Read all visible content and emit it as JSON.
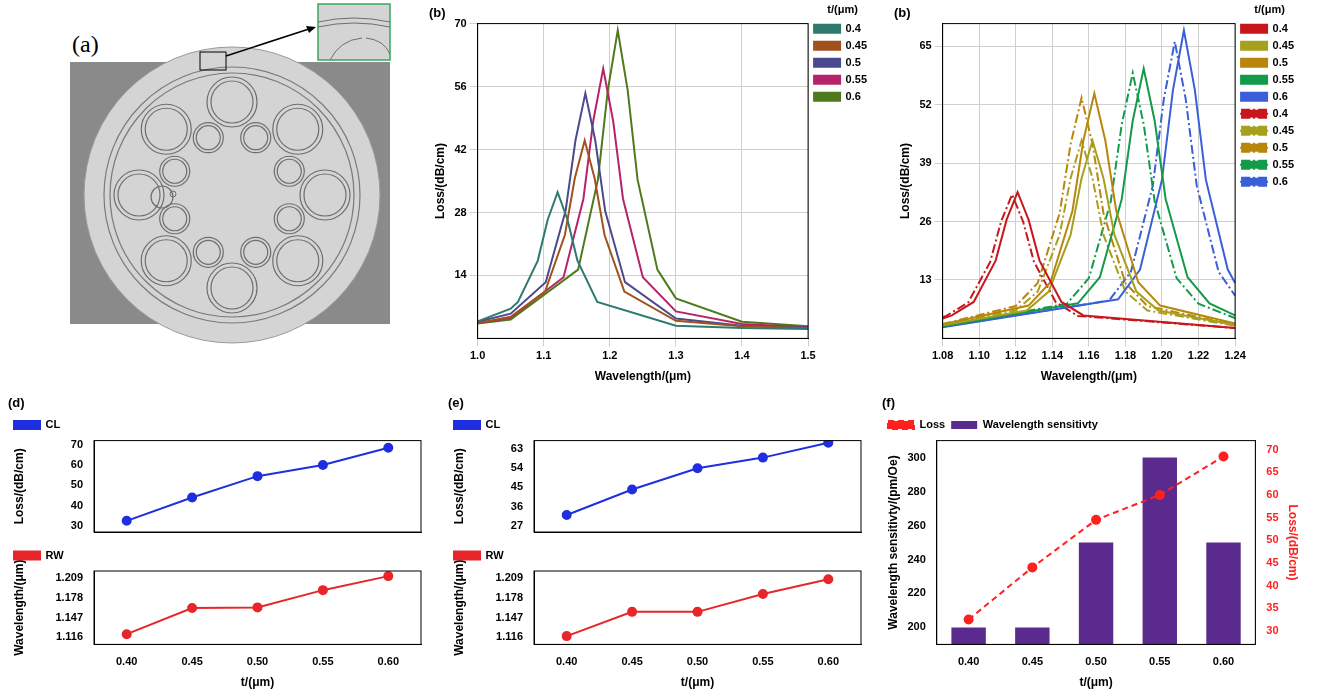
{
  "diagram": {
    "panel": "(a)"
  },
  "chart_data": [
    {
      "type": "line",
      "panel": "(b)",
      "x_label": "Wavelength/(μm)",
      "y_label": "Loss/(dB/cm)",
      "legend_title": "t/(μm)",
      "xlim": [
        1.0,
        1.5
      ],
      "xticks": [
        {
          "value": 1,
          "label": "1.0"
        },
        1.1,
        1.2,
        1.3,
        1.4,
        1.5
      ],
      "ylim": [
        0,
        70
      ],
      "yticks": [
        14,
        28,
        42,
        56,
        70
      ],
      "grid": true,
      "legend": "right",
      "series": [
        {
          "name": "0.4",
          "color": "#2e7a6e",
          "line_style": "solid",
          "marker": "none",
          "x": [
            1.0,
            1.05,
            1.061,
            1.091,
            1.106,
            1.121,
            1.136,
            1.151,
            1.181,
            1.3,
            1.4,
            1.5
          ],
          "values": [
            3.8,
            6.6,
            8.1,
            17.3,
            26.4,
            32.5,
            26.4,
            17.3,
            8.1,
            2.8,
            2.3,
            2.1
          ]
        },
        {
          "name": "0.45",
          "color": "#a0521e",
          "line_style": "solid",
          "marker": "none",
          "x": [
            1.0,
            1.05,
            1.102,
            1.132,
            1.147,
            1.162,
            1.177,
            1.192,
            1.222,
            1.3,
            1.4,
            1.5
          ],
          "values": [
            3.4,
            4.8,
            10.4,
            23,
            35.6,
            44,
            35.6,
            23,
            10.4,
            3.9,
            2.7,
            2.3
          ]
        },
        {
          "name": "0.5",
          "color": "#4a4a8c",
          "line_style": "solid",
          "marker": "none",
          "x": [
            1.0,
            1.05,
            1.103,
            1.133,
            1.148,
            1.163,
            1.178,
            1.193,
            1.223,
            1.3,
            1.4,
            1.5
          ],
          "values": [
            3.7,
            5.5,
            12.5,
            28.3,
            44,
            54.5,
            44,
            28.3,
            12.5,
            4.4,
            2.8,
            2.4
          ]
        },
        {
          "name": "0.55",
          "color": "#b5246b",
          "line_style": "solid",
          "marker": "none",
          "x": [
            1.0,
            1.05,
            1.13,
            1.16,
            1.175,
            1.19,
            1.205,
            1.22,
            1.25,
            1.3,
            1.4,
            1.5
          ],
          "values": [
            3.4,
            4.6,
            13.6,
            31,
            48.4,
            60,
            48.4,
            31,
            13.6,
            6,
            3.2,
            2.5
          ]
        },
        {
          "name": "0.6",
          "color": "#4d7a1c",
          "line_style": "solid",
          "marker": "none",
          "x": [
            1.0,
            1.05,
            1.152,
            1.182,
            1.197,
            1.212,
            1.227,
            1.242,
            1.272,
            1.3,
            1.4,
            1.5
          ],
          "values": [
            3.3,
            4.2,
            15.3,
            35.3,
            55.2,
            68.5,
            55.2,
            35.3,
            15.3,
            8.9,
            3.7,
            2.7
          ]
        }
      ]
    },
    {
      "type": "line",
      "panel": "(b)",
      "x_label": "Wavelength/(μm)",
      "y_label": "Loss/(dB/cm)",
      "legend_title": "t/(μm)",
      "xlim": [
        1.08,
        1.24
      ],
      "xticks": [
        1.08,
        {
          "value": 1.1,
          "label": "1.10"
        },
        1.12,
        1.14,
        1.16,
        1.18,
        {
          "value": 1.2,
          "label": "1.20"
        },
        1.22,
        1.24
      ],
      "ylim": [
        0,
        70
      ],
      "yticks": [
        13,
        26,
        39,
        52,
        65
      ],
      "grid": true,
      "legend": "right",
      "series": [
        {
          "name": "0.4",
          "color": "#c8161d",
          "line_style": "solid",
          "marker": "none",
          "x": [
            1.08,
            1.085,
            1.097,
            1.109,
            1.115,
            1.121,
            1.127,
            1.133,
            1.145,
            1.157,
            1.24
          ],
          "values": [
            4.4,
            5.1,
            8.1,
            17.3,
            26.4,
            32.5,
            26.4,
            17.3,
            8.1,
            5.1,
            2.3
          ]
        },
        {
          "name": "0.45",
          "color": "#a6a01c",
          "line_style": "solid",
          "marker": "none",
          "x": [
            1.08,
            1.126,
            1.138,
            1.15,
            1.156,
            1.162,
            1.168,
            1.174,
            1.186,
            1.198,
            1.24
          ],
          "values": [
            2.9,
            6.2,
            10.4,
            23,
            35.6,
            44,
            35.6,
            23,
            10.4,
            6.2,
            3
          ]
        },
        {
          "name": "0.5",
          "color": "#b8860b",
          "line_style": "solid",
          "marker": "none",
          "x": [
            1.08,
            1.127,
            1.139,
            1.151,
            1.157,
            1.163,
            1.169,
            1.175,
            1.187,
            1.199,
            1.24
          ],
          "values": [
            3.1,
            7.3,
            12.5,
            28.3,
            44,
            54.5,
            44,
            28.3,
            12.5,
            7.3,
            3.3
          ]
        },
        {
          "name": "0.55",
          "color": "#139a4a",
          "line_style": "solid",
          "marker": "none",
          "x": [
            1.08,
            1.154,
            1.166,
            1.178,
            1.184,
            1.19,
            1.196,
            1.202,
            1.214,
            1.226,
            1.24
          ],
          "values": [
            2.7,
            7.8,
            13.6,
            31,
            48.4,
            60,
            48.4,
            31,
            13.6,
            7.8,
            5.1
          ]
        },
        {
          "name": "0.6",
          "color": "#3a5fd9",
          "line_style": "solid",
          "marker": "none",
          "x": [
            1.08,
            1.176,
            1.188,
            1.2,
            1.206,
            1.212,
            1.218,
            1.224,
            1.236,
            1.24
          ],
          "values": [
            2.5,
            8.7,
            15.3,
            35.3,
            55.2,
            68.5,
            55.2,
            35.3,
            15.3,
            12.3
          ]
        },
        {
          "name": "0.4",
          "color": "#c8161d",
          "line_style": "dashdot",
          "marker": "none",
          "x": [
            1.08,
            1.082,
            1.094,
            1.106,
            1.112,
            1.118,
            1.124,
            1.13,
            1.142,
            1.154,
            1.24
          ],
          "values": [
            4.7,
            5,
            8,
            17,
            26,
            32,
            26,
            17,
            8,
            5,
            2.3
          ]
        },
        {
          "name": "0.45",
          "color": "#a6a01c",
          "line_style": "dashdot",
          "marker": "none",
          "x": [
            1.08,
            1.12,
            1.132,
            1.144,
            1.15,
            1.156,
            1.162,
            1.168,
            1.18,
            1.192,
            1.24
          ],
          "values": [
            3,
            6.2,
            10.4,
            23,
            35.6,
            44,
            35.6,
            23,
            10.4,
            6.2,
            2.8
          ]
        },
        {
          "name": "0.5",
          "color": "#b8860b",
          "line_style": "dashdot",
          "marker": "none",
          "x": [
            1.08,
            1.12,
            1.132,
            1.144,
            1.15,
            1.156,
            1.162,
            1.168,
            1.18,
            1.192,
            1.24
          ],
          "values": [
            3.2,
            7.2,
            12.3,
            27.8,
            43.2,
            53.5,
            43.2,
            27.8,
            12.3,
            7.2,
            3
          ]
        },
        {
          "name": "0.55",
          "color": "#139a4a",
          "line_style": "dashdot",
          "marker": "none",
          "x": [
            1.08,
            1.148,
            1.16,
            1.172,
            1.178,
            1.184,
            1.19,
            1.196,
            1.208,
            1.22,
            1.24
          ],
          "values": [
            2.7,
            7.7,
            13.4,
            30.5,
            47.6,
            59,
            47.6,
            30.5,
            13.4,
            7.7,
            4.5
          ]
        },
        {
          "name": "0.6",
          "color": "#3a5fd9",
          "line_style": "dashdot",
          "marker": "none",
          "x": [
            1.08,
            1.171,
            1.183,
            1.195,
            1.201,
            1.207,
            1.213,
            1.219,
            1.231,
            1.24
          ],
          "values": [
            2.6,
            8.4,
            14.8,
            34,
            53.2,
            66,
            53.2,
            34,
            14.8,
            9.5
          ]
        }
      ]
    },
    {
      "type": "line",
      "panel": "(d)",
      "y_label": "Loss/(dB/cm)",
      "categories": [
        "0.40",
        "0.45",
        "0.50",
        "0.55",
        "0.60"
      ],
      "ylim": [
        27,
        72
      ],
      "yticks": [
        30,
        40,
        50,
        60,
        70
      ],
      "grid": false,
      "legend": "top-left",
      "tick_labels": "y",
      "series": [
        {
          "name": "CL",
          "color": "#1f2fe0",
          "line_style": "solid",
          "marker": "circle",
          "values": [
            32.5,
            44,
            54.5,
            60,
            68.5
          ]
        }
      ]
    },
    {
      "type": "line",
      "x_label": "t/(μm)",
      "y_label": "Wavelength/(μm)",
      "categories": [
        "0.40",
        "0.45",
        "0.50",
        "0.55",
        "0.60"
      ],
      "ylim": [
        1.105,
        1.22
      ],
      "yticks": [
        1.116,
        1.147,
        1.178,
        1.209
      ],
      "grid": false,
      "legend": "top-left",
      "series": [
        {
          "name": "RW",
          "color": "#e8262a",
          "line_style": "solid",
          "marker": "circle",
          "values": [
            1.121,
            1.162,
            1.163,
            1.19,
            1.212
          ]
        }
      ]
    },
    {
      "type": "line",
      "panel": "(e)",
      "y_label": "Loss/(dB/cm)",
      "categories": [
        "0.40",
        "0.45",
        "0.50",
        "0.55",
        "0.60"
      ],
      "ylim": [
        24,
        67
      ],
      "yticks": [
        27,
        36,
        45,
        54,
        63
      ],
      "grid": false,
      "legend": "top-left",
      "tick_labels": "y",
      "series": [
        {
          "name": "CL",
          "color": "#1f2fe0",
          "line_style": "solid",
          "marker": "circle",
          "values": [
            32,
            44,
            54,
            59,
            66
          ]
        }
      ]
    },
    {
      "type": "line",
      "x_label": "t/(μm)",
      "y_label": "Wavelength/(μm)",
      "categories": [
        "0.40",
        "0.45",
        "0.50",
        "0.55",
        "0.60"
      ],
      "ylim": [
        1.105,
        1.22
      ],
      "yticks": [
        1.116,
        1.147,
        1.178,
        1.209
      ],
      "grid": false,
      "legend": "top-left",
      "series": [
        {
          "name": "RW",
          "color": "#e8262a",
          "line_style": "solid",
          "marker": "circle",
          "values": [
            1.118,
            1.156,
            1.156,
            1.184,
            1.207
          ]
        }
      ]
    },
    {
      "type": "bar",
      "panel": "(f)",
      "x_label": "t/(μm)",
      "y_label": "Wavelength sensitivty/(pm/Oe)",
      "y2_label": "Loss/(dB/cm)",
      "categories": [
        "0.40",
        "0.45",
        "0.50",
        "0.55",
        "0.60"
      ],
      "ylim": [
        190,
        310
      ],
      "yticks": [
        200,
        220,
        240,
        260,
        280,
        300
      ],
      "y2lim": [
        27,
        72
      ],
      "y2ticks": [
        30,
        35,
        40,
        45,
        50,
        55,
        60,
        65,
        70
      ],
      "grid": false,
      "legend": "top-left",
      "series": [
        {
          "name": "Wavelength sensitivty",
          "type": "bar",
          "color": "#5b2a8e",
          "values": [
            200,
            200,
            250,
            300,
            250
          ]
        },
        {
          "name": "Loss",
          "type": "line",
          "axis": "y2",
          "color": "#ff2020",
          "line_style": "dashed",
          "marker": "circle",
          "values": [
            32.5,
            44,
            54.5,
            60,
            68.5
          ]
        }
      ]
    }
  ]
}
